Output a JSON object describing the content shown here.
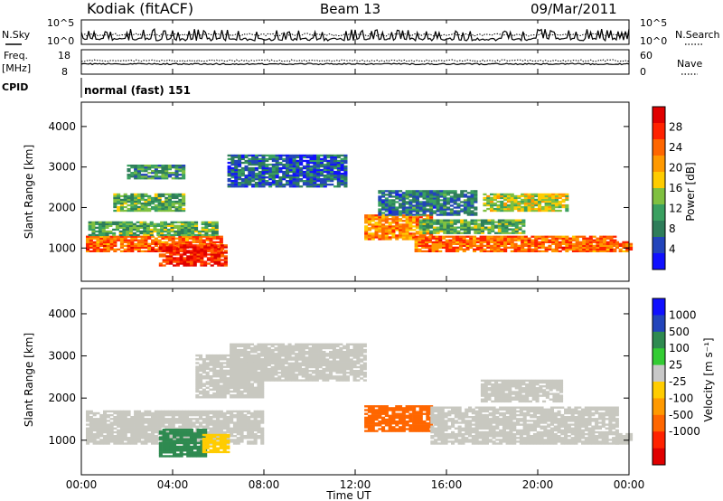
{
  "header": {
    "radar_title": "Kodiak (fitACF)",
    "beam": "Beam 13",
    "date": "09/Mar/2011"
  },
  "top_strips": {
    "nsky_label": "N.Sky",
    "nsearch_label": "N.Search",
    "noise_ticks": [
      "10^5",
      "10^0"
    ],
    "freq_label_line1": "Freq.",
    "freq_label_line2": "[MHz]",
    "freq_ticks": [
      "18",
      "8"
    ],
    "nave_label": "Nave",
    "nave_ticks": [
      "60",
      "0"
    ],
    "cpid_label": "CPID",
    "cpid_value": "normal (fast) 151"
  },
  "colors": {
    "power_scale": [
      "#1010ff",
      "#2244bb",
      "#2e7d5a",
      "#3aa060",
      "#7fc040",
      "#ffcc00",
      "#ff9900",
      "#ff6600",
      "#ff2200",
      "#e00000"
    ],
    "velocity_scale": [
      "#1010ff",
      "#2244bb",
      "#2e8a50",
      "#33cc33",
      "#c8c8c8",
      "#ffcc00",
      "#ff9900",
      "#ff6600",
      "#ff2200",
      "#e00000"
    ],
    "velocity_ground": "#c8c8c0"
  },
  "chart_data": [
    {
      "type": "heatmap",
      "name": "power",
      "ylabel": "Slant Range [km]",
      "yticks": [
        "1000",
        "2000",
        "3000",
        "4000"
      ],
      "ylim": [
        180,
        4600
      ],
      "colorbar_label": "Power [dB]",
      "colorbar_ticks": [
        "4",
        "8",
        "12",
        "16",
        "20",
        "24",
        "28"
      ],
      "colorbar_range": [
        0,
        32
      ],
      "regions": [
        {
          "t0": 0.2,
          "t1": 6.2,
          "r0": 900,
          "r1": 1300,
          "value": 24
        },
        {
          "t0": 0.3,
          "t1": 6.0,
          "r0": 1300,
          "r1": 1650,
          "value": 12
        },
        {
          "t0": 3.4,
          "t1": 6.4,
          "r0": 550,
          "r1": 1050,
          "value": 28
        },
        {
          "t0": 1.4,
          "t1": 4.5,
          "r0": 1900,
          "r1": 2350,
          "value": 12
        },
        {
          "t0": 2.0,
          "t1": 4.4,
          "r0": 2700,
          "r1": 3050,
          "value": 10
        },
        {
          "t0": 6.4,
          "t1": 11.6,
          "r0": 2500,
          "r1": 3300,
          "value": 6
        },
        {
          "t0": 12.4,
          "t1": 15.4,
          "r0": 1200,
          "r1": 1800,
          "value": 22
        },
        {
          "t0": 14.6,
          "t1": 23.4,
          "r0": 900,
          "r1": 1300,
          "value": 24
        },
        {
          "t0": 14.8,
          "t1": 19.4,
          "r0": 1350,
          "r1": 1700,
          "value": 12
        },
        {
          "t0": 17.6,
          "t1": 21.2,
          "r0": 1900,
          "r1": 2350,
          "value": 16
        },
        {
          "t0": 13.0,
          "t1": 17.2,
          "r0": 1800,
          "r1": 2400,
          "value": 8
        },
        {
          "t0": 23.4,
          "t1": 24.0,
          "r0": 900,
          "r1": 1150,
          "value": 24
        }
      ]
    },
    {
      "type": "heatmap",
      "name": "velocity",
      "ylabel": "Slant Range [km]",
      "yticks": [
        "1000",
        "2000",
        "3000",
        "4000"
      ],
      "ylim": [
        180,
        4600
      ],
      "xlabel": "Time UT",
      "xticks": [
        "00:00",
        "04:00",
        "08:00",
        "12:00",
        "16:00",
        "20:00",
        "00:00"
      ],
      "xlim": [
        0,
        24
      ],
      "colorbar_label": "Velocity [m s⁻¹]",
      "colorbar_ticks": [
        "1000",
        "500",
        "100",
        "25",
        "-25",
        "-100",
        "-500",
        "-1000"
      ],
      "regions": [
        {
          "t0": 0.2,
          "t1": 8.0,
          "r0": 900,
          "r1": 1700,
          "value": 0
        },
        {
          "t0": 3.4,
          "t1": 5.5,
          "r0": 600,
          "r1": 1250,
          "value": 150
        },
        {
          "t0": 5.3,
          "t1": 6.5,
          "r0": 700,
          "r1": 1150,
          "value": -80
        },
        {
          "t0": 5.0,
          "t1": 8.0,
          "r0": 2000,
          "r1": 3000,
          "value": 0
        },
        {
          "t0": 6.5,
          "t1": 12.4,
          "r0": 2400,
          "r1": 3300,
          "value": 0
        },
        {
          "t0": 12.4,
          "t1": 15.3,
          "r0": 1200,
          "r1": 1800,
          "value": -300
        },
        {
          "t0": 15.3,
          "t1": 23.4,
          "r0": 900,
          "r1": 1800,
          "value": 0
        },
        {
          "t0": 17.5,
          "t1": 21.0,
          "r0": 1900,
          "r1": 2400,
          "value": 0
        },
        {
          "t0": 23.4,
          "t1": 24.0,
          "r0": 900,
          "r1": 1150,
          "value": 0
        }
      ]
    }
  ]
}
